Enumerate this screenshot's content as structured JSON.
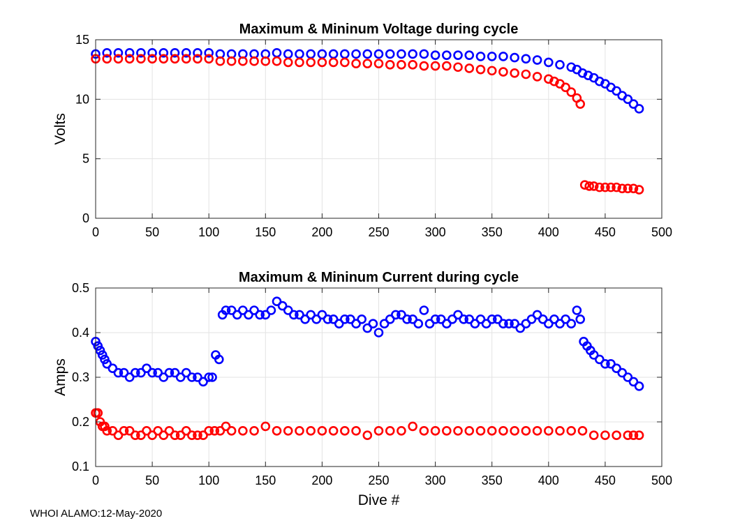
{
  "chart_data": [
    {
      "type": "scatter",
      "title": "Maximum & Mininum Voltage during cycle",
      "xlabel": "",
      "ylabel": "Volts",
      "xlim": [
        0,
        500
      ],
      "ylim": [
        0,
        15
      ],
      "xticks": [
        0,
        50,
        100,
        150,
        200,
        250,
        300,
        350,
        400,
        450,
        500
      ],
      "yticks": [
        0,
        5,
        10,
        15
      ],
      "grid": true,
      "series": [
        {
          "name": "Maximum",
          "color": "#0000ff",
          "x": [
            0,
            10,
            20,
            30,
            40,
            50,
            60,
            70,
            80,
            90,
            100,
            110,
            120,
            130,
            140,
            150,
            160,
            170,
            180,
            190,
            200,
            210,
            220,
            230,
            240,
            250,
            260,
            270,
            280,
            290,
            300,
            310,
            320,
            330,
            340,
            350,
            360,
            370,
            380,
            390,
            400,
            410,
            420,
            425,
            430,
            435,
            440,
            445,
            450,
            455,
            460,
            465,
            470,
            475,
            480
          ],
          "y": [
            13.8,
            13.9,
            13.9,
            13.9,
            13.9,
            13.9,
            13.9,
            13.9,
            13.9,
            13.9,
            13.9,
            13.8,
            13.8,
            13.8,
            13.8,
            13.8,
            13.9,
            13.8,
            13.8,
            13.8,
            13.8,
            13.8,
            13.8,
            13.8,
            13.8,
            13.8,
            13.8,
            13.8,
            13.8,
            13.8,
            13.7,
            13.7,
            13.7,
            13.7,
            13.6,
            13.6,
            13.6,
            13.5,
            13.4,
            13.3,
            13.1,
            12.9,
            12.7,
            12.5,
            12.2,
            12.0,
            11.8,
            11.5,
            11.3,
            11.0,
            10.7,
            10.3,
            10.0,
            9.6,
            9.2
          ]
        },
        {
          "name": "Minimum",
          "color": "#ff0000",
          "x": [
            0,
            10,
            20,
            30,
            40,
            50,
            60,
            70,
            80,
            90,
            100,
            110,
            120,
            130,
            140,
            150,
            160,
            170,
            180,
            190,
            200,
            210,
            220,
            230,
            240,
            250,
            260,
            270,
            280,
            290,
            300,
            310,
            320,
            330,
            340,
            350,
            360,
            370,
            380,
            390,
            400,
            405,
            410,
            415,
            420,
            425,
            428,
            432,
            436,
            440,
            445,
            450,
            455,
            460,
            465,
            470,
            475,
            480
          ],
          "y": [
            13.4,
            13.4,
            13.4,
            13.4,
            13.4,
            13.4,
            13.4,
            13.4,
            13.4,
            13.4,
            13.4,
            13.2,
            13.2,
            13.2,
            13.2,
            13.2,
            13.2,
            13.1,
            13.1,
            13.1,
            13.1,
            13.1,
            13.1,
            13.0,
            13.0,
            13.0,
            12.9,
            12.9,
            12.9,
            12.8,
            12.8,
            12.8,
            12.7,
            12.6,
            12.5,
            12.4,
            12.3,
            12.2,
            12.1,
            11.9,
            11.7,
            11.5,
            11.3,
            11.0,
            10.6,
            10.1,
            9.6,
            2.8,
            2.7,
            2.7,
            2.6,
            2.6,
            2.6,
            2.6,
            2.5,
            2.5,
            2.5,
            2.4
          ]
        }
      ]
    },
    {
      "type": "scatter",
      "title": "Maximum & Mininum Current during cycle",
      "xlabel": "Dive #",
      "ylabel": "Amps",
      "xlim": [
        0,
        500
      ],
      "ylim": [
        0.1,
        0.5
      ],
      "xticks": [
        0,
        50,
        100,
        150,
        200,
        250,
        300,
        350,
        400,
        450,
        500
      ],
      "yticks": [
        0.1,
        0.2,
        0.3,
        0.4,
        0.5
      ],
      "grid": true,
      "series": [
        {
          "name": "Maximum",
          "color": "#0000ff",
          "x": [
            0,
            2,
            4,
            6,
            8,
            10,
            15,
            20,
            25,
            30,
            35,
            40,
            45,
            50,
            55,
            60,
            65,
            70,
            75,
            80,
            85,
            90,
            95,
            100,
            103,
            106,
            109,
            112,
            115,
            120,
            125,
            130,
            135,
            140,
            145,
            150,
            155,
            160,
            165,
            170,
            175,
            180,
            185,
            190,
            195,
            200,
            205,
            210,
            215,
            220,
            225,
            230,
            235,
            240,
            245,
            250,
            255,
            260,
            265,
            270,
            275,
            280,
            285,
            290,
            295,
            300,
            305,
            310,
            315,
            320,
            325,
            330,
            335,
            340,
            345,
            350,
            355,
            360,
            365,
            370,
            375,
            380,
            385,
            390,
            395,
            400,
            405,
            410,
            415,
            420,
            425,
            428,
            431,
            434,
            437,
            440,
            445,
            450,
            455,
            460,
            465,
            470,
            475,
            480
          ],
          "y": [
            0.38,
            0.37,
            0.36,
            0.35,
            0.34,
            0.33,
            0.32,
            0.31,
            0.31,
            0.3,
            0.31,
            0.31,
            0.32,
            0.31,
            0.31,
            0.3,
            0.31,
            0.31,
            0.3,
            0.31,
            0.3,
            0.3,
            0.29,
            0.3,
            0.3,
            0.35,
            0.34,
            0.44,
            0.45,
            0.45,
            0.44,
            0.45,
            0.44,
            0.45,
            0.44,
            0.44,
            0.45,
            0.47,
            0.46,
            0.45,
            0.44,
            0.44,
            0.43,
            0.44,
            0.43,
            0.44,
            0.43,
            0.43,
            0.42,
            0.43,
            0.43,
            0.42,
            0.43,
            0.41,
            0.42,
            0.4,
            0.42,
            0.43,
            0.44,
            0.44,
            0.43,
            0.43,
            0.42,
            0.45,
            0.42,
            0.43,
            0.43,
            0.42,
            0.43,
            0.44,
            0.43,
            0.43,
            0.42,
            0.43,
            0.42,
            0.43,
            0.43,
            0.42,
            0.42,
            0.42,
            0.41,
            0.42,
            0.43,
            0.44,
            0.43,
            0.42,
            0.43,
            0.42,
            0.43,
            0.42,
            0.45,
            0.43,
            0.38,
            0.37,
            0.36,
            0.35,
            0.34,
            0.33,
            0.33,
            0.32,
            0.31,
            0.3,
            0.29,
            0.28
          ]
        },
        {
          "name": "Minimum",
          "color": "#ff0000",
          "x": [
            0,
            2,
            4,
            6,
            8,
            10,
            15,
            20,
            25,
            30,
            35,
            40,
            45,
            50,
            55,
            60,
            65,
            70,
            75,
            80,
            85,
            90,
            95,
            100,
            105,
            110,
            115,
            120,
            130,
            140,
            150,
            160,
            170,
            180,
            190,
            200,
            210,
            220,
            230,
            240,
            250,
            260,
            270,
            280,
            290,
            300,
            310,
            320,
            330,
            340,
            350,
            360,
            370,
            380,
            390,
            400,
            410,
            420,
            430,
            440,
            450,
            460,
            470,
            475,
            480
          ],
          "y": [
            0.22,
            0.22,
            0.2,
            0.19,
            0.19,
            0.18,
            0.18,
            0.17,
            0.18,
            0.18,
            0.17,
            0.17,
            0.18,
            0.17,
            0.18,
            0.17,
            0.18,
            0.17,
            0.17,
            0.18,
            0.17,
            0.17,
            0.17,
            0.18,
            0.18,
            0.18,
            0.19,
            0.18,
            0.18,
            0.18,
            0.19,
            0.18,
            0.18,
            0.18,
            0.18,
            0.18,
            0.18,
            0.18,
            0.18,
            0.17,
            0.18,
            0.18,
            0.18,
            0.19,
            0.18,
            0.18,
            0.18,
            0.18,
            0.18,
            0.18,
            0.18,
            0.18,
            0.18,
            0.18,
            0.18,
            0.18,
            0.18,
            0.18,
            0.18,
            0.17,
            0.17,
            0.17,
            0.17,
            0.17,
            0.17
          ]
        }
      ]
    }
  ],
  "footer": {
    "text": "WHOI ALAMO:12-May-2020"
  }
}
